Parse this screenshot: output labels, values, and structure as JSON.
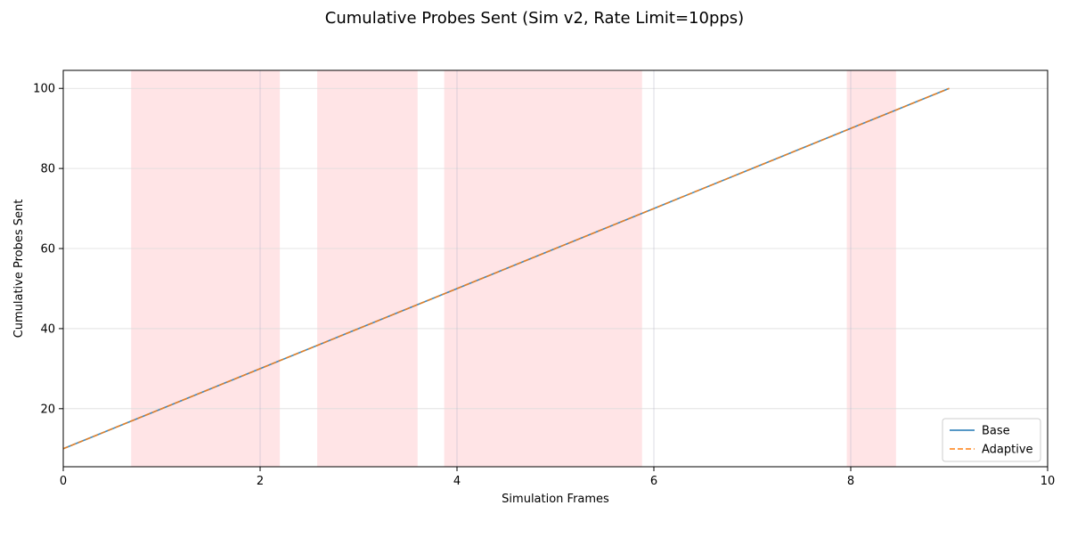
{
  "chart_data": {
    "type": "line",
    "title": "Cumulative Probes Sent (Sim v2, Rate Limit=10pps)",
    "xlabel": "Simulation Frames",
    "ylabel": "Cumulative Probes Sent",
    "xlim": [
      0,
      10
    ],
    "ylim": [
      5.5,
      104.5
    ],
    "xticks": [
      0,
      2,
      4,
      6,
      8,
      10
    ],
    "yticks": [
      20,
      40,
      60,
      80,
      100
    ],
    "grid": true,
    "legend_position": "lower-right",
    "series": [
      {
        "name": "Base",
        "color": "#1f77b4",
        "style": "solid",
        "x": [
          0,
          1,
          2,
          3,
          4,
          5,
          6,
          7,
          8,
          9
        ],
        "y": [
          10,
          20,
          30,
          40,
          50,
          60,
          70,
          80,
          90,
          100
        ]
      },
      {
        "name": "Adaptive",
        "color": "#ff7f0e",
        "style": "dashed",
        "x": [
          0,
          1,
          2,
          3,
          4,
          5,
          6,
          7,
          8,
          9
        ],
        "y": [
          10,
          20,
          30,
          40,
          50,
          60,
          70,
          80,
          90,
          100
        ]
      }
    ],
    "shaded_regions": [
      {
        "x": [
          0.69,
          2.2
        ],
        "color": "#ff9aa2"
      },
      {
        "x": [
          2.58,
          3.6
        ],
        "color": "#ff9aa2"
      },
      {
        "x": [
          3.87,
          5.88
        ],
        "color": "#ff9aa2"
      },
      {
        "x": [
          7.96,
          8.46
        ],
        "color": "#ff9aa2"
      }
    ],
    "vertical_lines": [
      {
        "x": 2.0,
        "color": "#b0b0c8"
      },
      {
        "x": 4.0,
        "color": "#b0b0c8"
      },
      {
        "x": 6.0,
        "color": "#b0b0c8"
      },
      {
        "x": 8.0,
        "color": "#b0b0c8"
      }
    ]
  }
}
